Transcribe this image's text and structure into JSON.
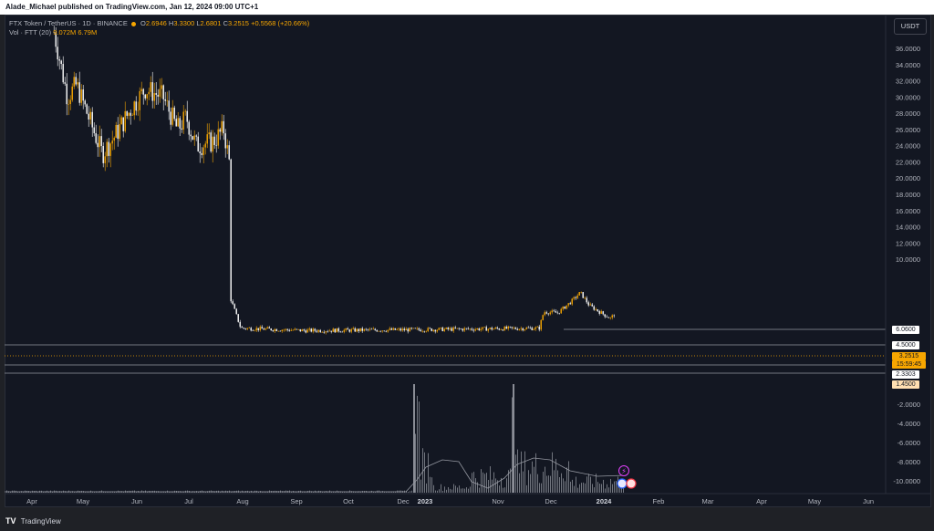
{
  "header": {
    "published": "Alade_Michael published on TradingView.com, Jan 12, 2024 09:00 UTC+1"
  },
  "legend": {
    "symbol": "FTX Token / TetherUS",
    "interval": "1D",
    "exchange": "BINANCE",
    "open_label": "O",
    "open": "2.6946",
    "high_label": "H",
    "high": "3.3300",
    "low_label": "L",
    "low": "2.6801",
    "close_label": "C",
    "close": "3.2515",
    "change": "+0.5568 (+20.66%)",
    "volume_label": "Vol · FTT (20)",
    "volume": "9.072M",
    "volume_ma": "6.79M"
  },
  "currency_button": "USDT",
  "price_tags": {
    "high_level": "6.0600",
    "mid_level": "4.5000",
    "last_price": "3.2515",
    "countdown": "15:59:45",
    "support_level": "2.3303",
    "low_level": "1.4500"
  },
  "footer": {
    "logo": "TV",
    "brand": "TradingView"
  },
  "colors": {
    "background": "#131722",
    "up_candle": "#f7a600",
    "down_candle": "#ffffff",
    "price_tag": "#f7a600",
    "volume": "#8a8d96"
  },
  "chart_data": {
    "type": "candlestick",
    "x_ticks": [
      "Apr",
      "May",
      "Jun",
      "Jul",
      "Aug",
      "Sep",
      "Oct",
      "Dec",
      "2023",
      "Nov",
      "Dec",
      "2024",
      "Feb",
      "Mar",
      "Apr",
      "May",
      "Jun"
    ],
    "y_ticks": [
      "36.0000",
      "34.0000",
      "32.0000",
      "30.0000",
      "28.0000",
      "26.0000",
      "24.0000",
      "22.0000",
      "20.0000",
      "18.0000",
      "16.0000",
      "14.0000",
      "12.0000",
      "10.0000",
      "-2.0000",
      "-4.0000",
      "-6.0000",
      "-8.0000",
      "-10.0000"
    ],
    "ylim": [
      -11,
      38
    ],
    "price_series": [
      {
        "date": "2022-04-25",
        "close": 38.0
      },
      {
        "date": "2022-05-10",
        "close": 30.0
      },
      {
        "date": "2022-05-20",
        "close": 31.5
      },
      {
        "date": "2022-06-01",
        "close": 28.0
      },
      {
        "date": "2022-06-18",
        "close": 23.0
      },
      {
        "date": "2022-07-01",
        "close": 25.0
      },
      {
        "date": "2022-07-20",
        "close": 28.5
      },
      {
        "date": "2022-08-05",
        "close": 31.0
      },
      {
        "date": "2022-08-25",
        "close": 30.0
      },
      {
        "date": "2022-09-10",
        "close": 26.0
      },
      {
        "date": "2022-09-20",
        "close": 27.5
      },
      {
        "date": "2022-10-01",
        "close": 24.0
      },
      {
        "date": "2022-10-20",
        "close": 24.5
      },
      {
        "date": "2022-11-01",
        "close": 26.0
      },
      {
        "date": "2022-11-07",
        "close": 22.0
      },
      {
        "date": "2022-11-09",
        "close": 5.0
      },
      {
        "date": "2022-11-20",
        "close": 1.5
      },
      {
        "date": "2023-02-01",
        "close": 1.2
      },
      {
        "date": "2023-06-01",
        "close": 1.3
      },
      {
        "date": "2023-10-20",
        "close": 1.5
      },
      {
        "date": "2023-10-25",
        "close": 3.5
      },
      {
        "date": "2023-11-10",
        "close": 3.4
      },
      {
        "date": "2023-11-25",
        "close": 4.8
      },
      {
        "date": "2023-12-05",
        "close": 5.9
      },
      {
        "date": "2023-12-15",
        "close": 4.3
      },
      {
        "date": "2023-12-31",
        "close": 3.2
      },
      {
        "date": "2024-01-08",
        "close": 2.7
      },
      {
        "date": "2024-01-12",
        "close": 3.2515
      }
    ],
    "horizontal_levels": [
      6.06,
      4.5,
      2.3303,
      1.45
    ]
  }
}
